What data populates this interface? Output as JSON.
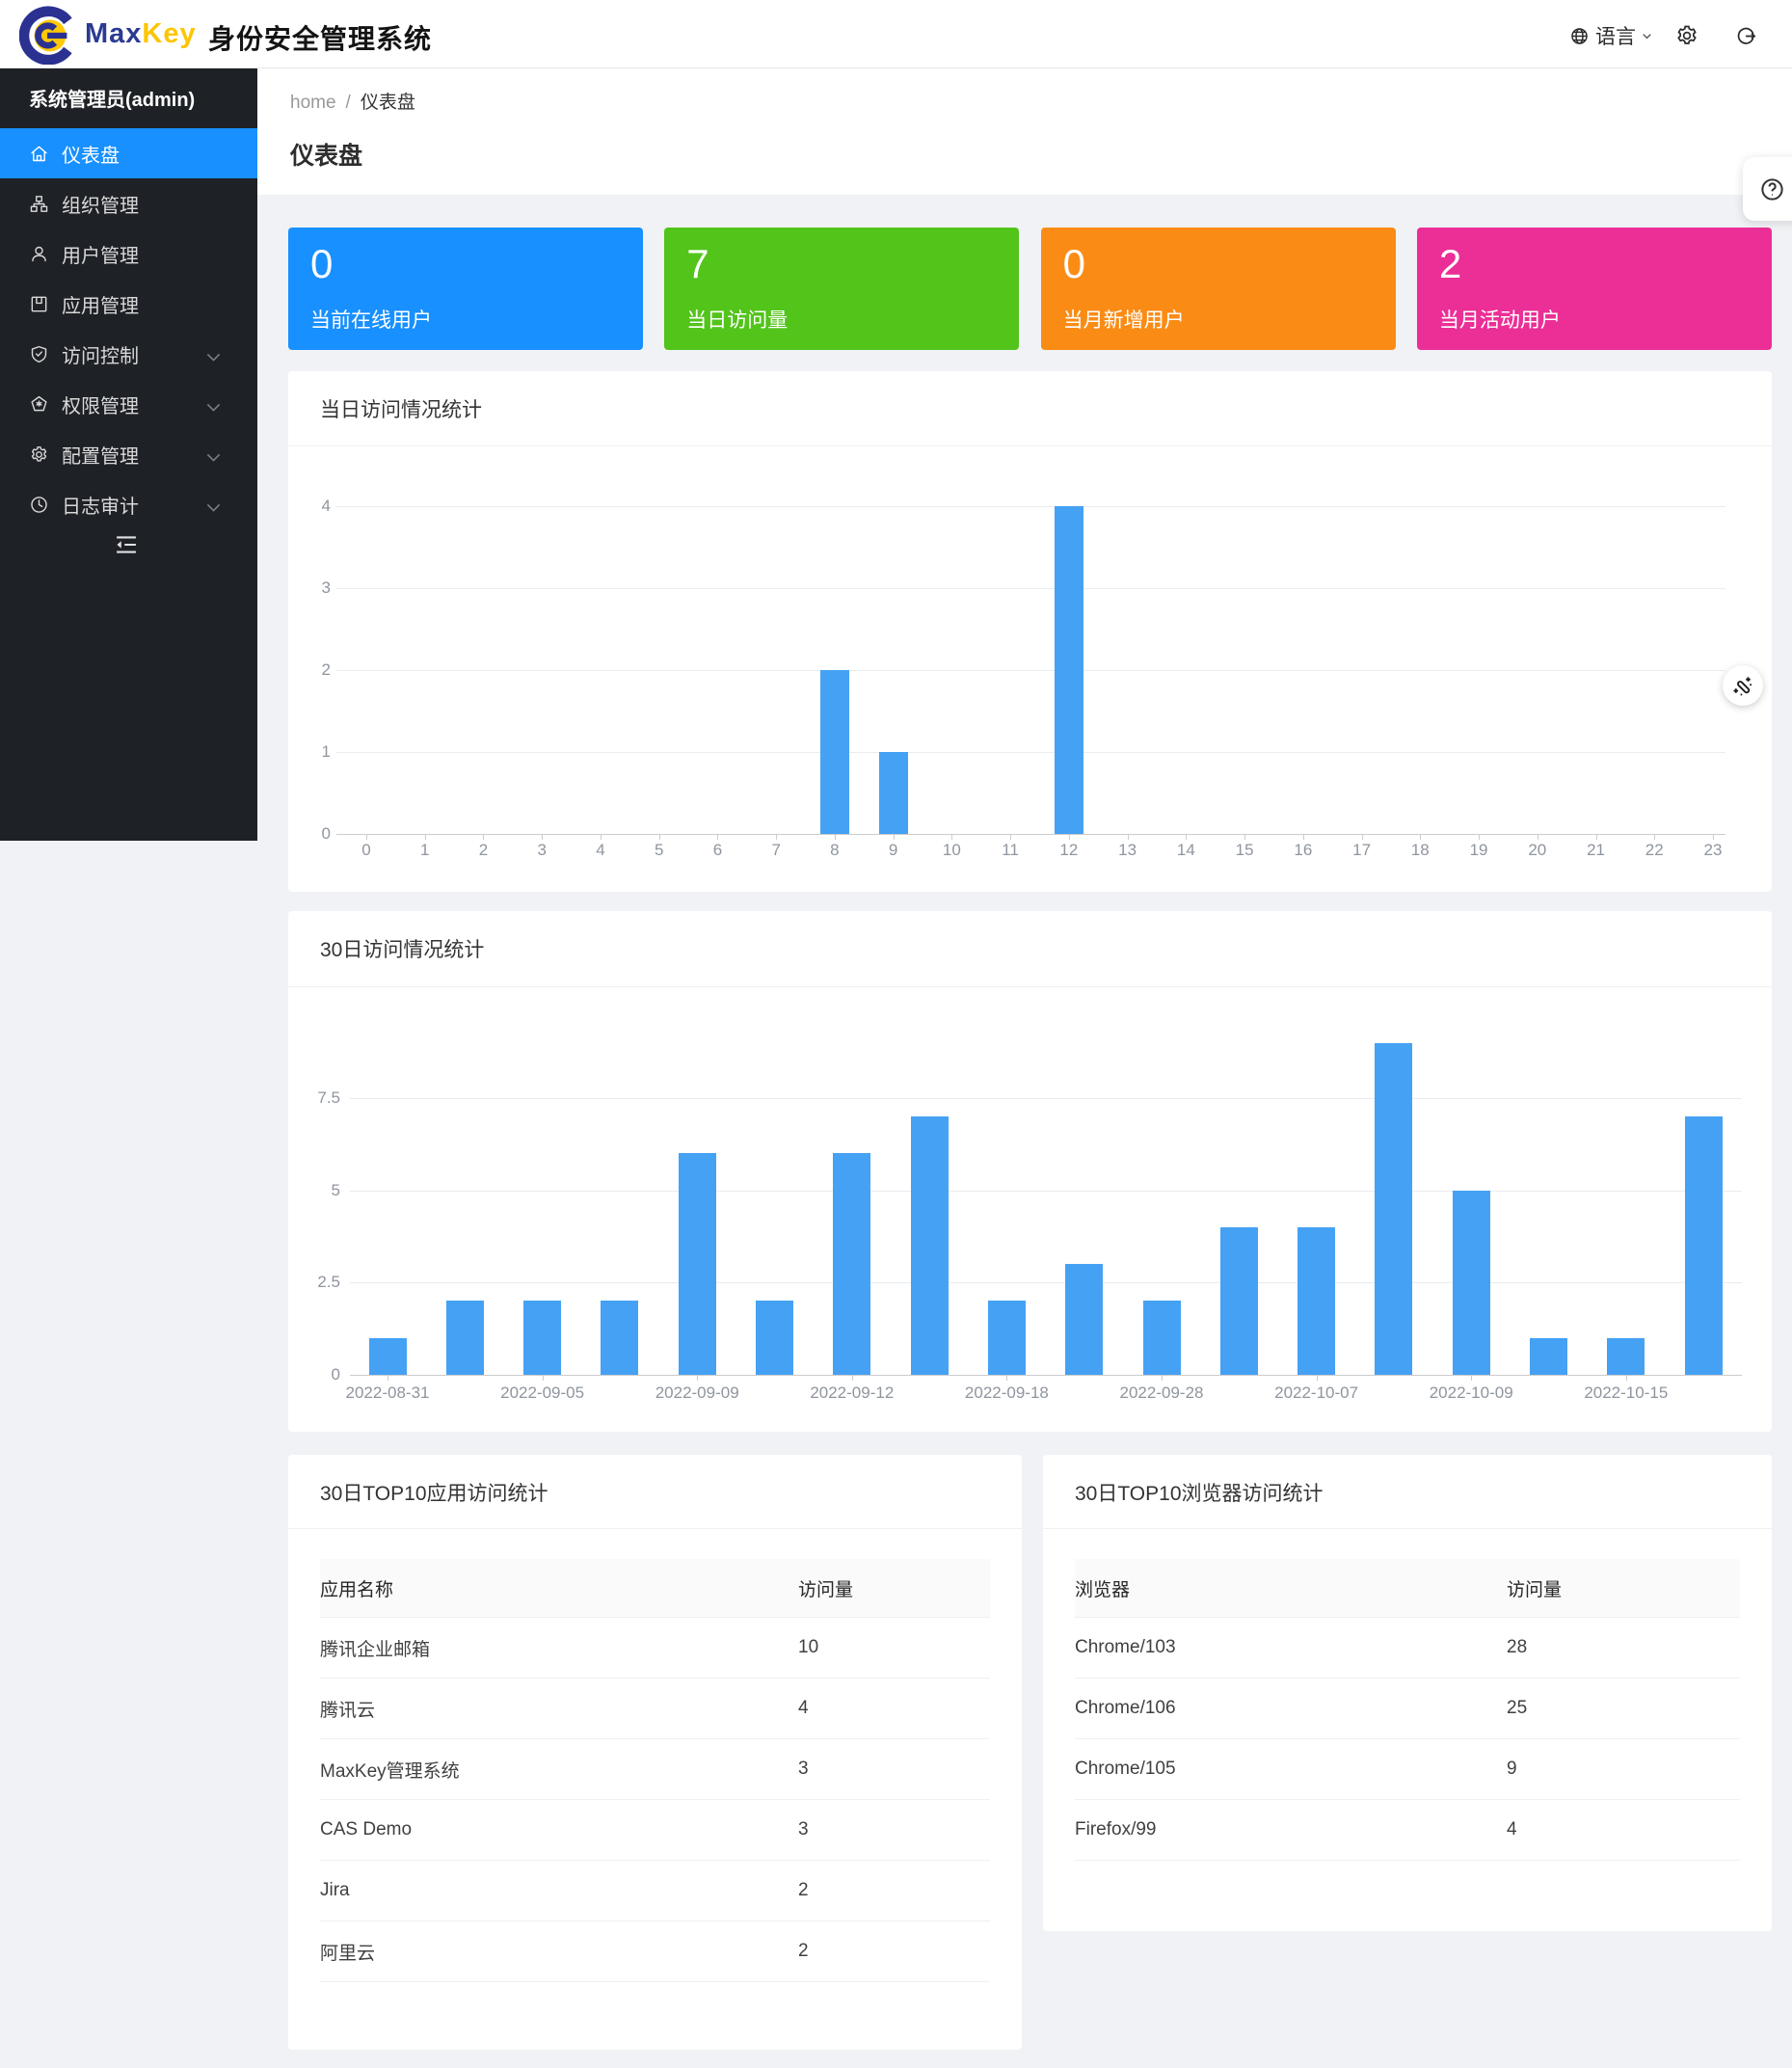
{
  "header": {
    "brand_max": "Max",
    "brand_key": "Key",
    "app_title": "身份安全管理系统",
    "language_label": "语言"
  },
  "sidebar": {
    "user_label": "系统管理员(admin)",
    "items": [
      {
        "label": "仪表盘",
        "icon": "home-icon",
        "active": true,
        "expandable": false
      },
      {
        "label": "组织管理",
        "icon": "org-icon",
        "active": false,
        "expandable": false
      },
      {
        "label": "用户管理",
        "icon": "user-icon",
        "active": false,
        "expandable": false
      },
      {
        "label": "应用管理",
        "icon": "apps-icon",
        "active": false,
        "expandable": false
      },
      {
        "label": "访问控制",
        "icon": "shield-check-icon",
        "active": false,
        "expandable": true
      },
      {
        "label": "权限管理",
        "icon": "permission-badge-icon",
        "active": false,
        "expandable": true
      },
      {
        "label": "配置管理",
        "icon": "gear-icon",
        "active": false,
        "expandable": true
      },
      {
        "label": "日志审计",
        "icon": "clock-icon",
        "active": false,
        "expandable": true
      }
    ]
  },
  "breadcrumb": {
    "home": "home",
    "current": "仪表盘"
  },
  "page_title": "仪表盘",
  "stats": [
    {
      "value": "0",
      "label": "当前在线用户",
      "color": "#1890ff"
    },
    {
      "value": "7",
      "label": "当日访问量",
      "color": "#52c41a"
    },
    {
      "value": "0",
      "label": "当月新增用户",
      "color": "#fa8c16"
    },
    {
      "value": "2",
      "label": "当月活动用户",
      "color": "#eb2f96"
    }
  ],
  "chart_data": [
    {
      "type": "bar",
      "title": "当日访问情况统计",
      "categories": [
        "0",
        "1",
        "2",
        "3",
        "4",
        "5",
        "6",
        "7",
        "8",
        "9",
        "10",
        "11",
        "12",
        "13",
        "14",
        "15",
        "16",
        "17",
        "18",
        "19",
        "20",
        "21",
        "22",
        "23"
      ],
      "values": [
        0,
        0,
        0,
        0,
        0,
        0,
        0,
        0,
        2,
        1,
        0,
        0,
        4,
        0,
        0,
        0,
        0,
        0,
        0,
        0,
        0,
        0,
        0,
        0
      ],
      "xlabel": "",
      "ylabel": "",
      "ylim": [
        0,
        4
      ],
      "yticks": [
        0,
        1,
        2,
        3,
        4
      ],
      "bar_color": "#45a1f4",
      "grid": true,
      "legend": false
    },
    {
      "type": "bar",
      "title": "30日访问情况统计",
      "values": [
        1,
        2,
        2,
        2,
        6,
        2,
        6,
        7,
        2,
        3,
        2,
        4,
        4,
        9,
        5,
        1,
        1,
        7
      ],
      "x_tick_labels": [
        "2022-08-31",
        "2022-09-05",
        "2022-09-09",
        "2022-09-12",
        "2022-09-18",
        "2022-09-28",
        "2022-10-07",
        "2022-10-09",
        "2022-10-15"
      ],
      "label_every": 2,
      "xlabel": "",
      "ylabel": "",
      "ylim": [
        0,
        9
      ],
      "yticks": [
        0,
        2.5,
        5,
        7.5
      ],
      "bar_color": "#45a1f4",
      "grid": true,
      "legend": false
    }
  ],
  "tables": [
    {
      "title": "30日TOP10应用访问统计",
      "columns": [
        "应用名称",
        "访问量"
      ],
      "rows": [
        [
          "腾讯企业邮箱",
          "10"
        ],
        [
          "腾讯云",
          "4"
        ],
        [
          "MaxKey管理系统",
          "3"
        ],
        [
          "CAS Demo",
          "3"
        ],
        [
          "Jira",
          "2"
        ],
        [
          "阿里云",
          "2"
        ]
      ]
    },
    {
      "title": "30日TOP10浏览器访问统计",
      "columns": [
        "浏览器",
        "访问量"
      ],
      "rows": [
        [
          "Chrome/103",
          "28"
        ],
        [
          "Chrome/106",
          "25"
        ],
        [
          "Chrome/105",
          "9"
        ],
        [
          "Firefox/99",
          "4"
        ]
      ]
    }
  ]
}
